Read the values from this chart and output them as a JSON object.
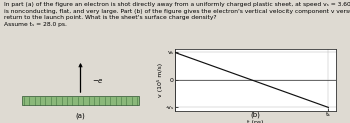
{
  "text_content": "In part (a) of the figure an electron is shot directly away from a uniformly charged plastic sheet, at speed vₛ = 3.60 × 10⁵ m/s. The sheet\nis nonconducting, flat, and very large. Part (b) of the figure gives the electron's vertical velocity component v versus time t until the\nreturn to the launch point. What is the sheet's surface charge density?\nAssume tₛ = 28.0 ps.",
  "part_a_label": "(a)",
  "part_b_label": "(b)",
  "ylabel": "v (10⁵ m/s)",
  "xlabel": "t (ps)",
  "vs": 3.6,
  "ts": 28.0,
  "sheet_color": "#8ab87a",
  "bg_color": "#dedad2",
  "grid_color": "#bbbbbb",
  "line_color": "#111111",
  "tick_label_vs": "vₛ",
  "tick_label_neg_vs": "-vₛ",
  "tick_label_ts": "tₛ",
  "text_fontsize": 4.3,
  "label_fontsize": 5.0,
  "tick_fontsize": 4.5
}
